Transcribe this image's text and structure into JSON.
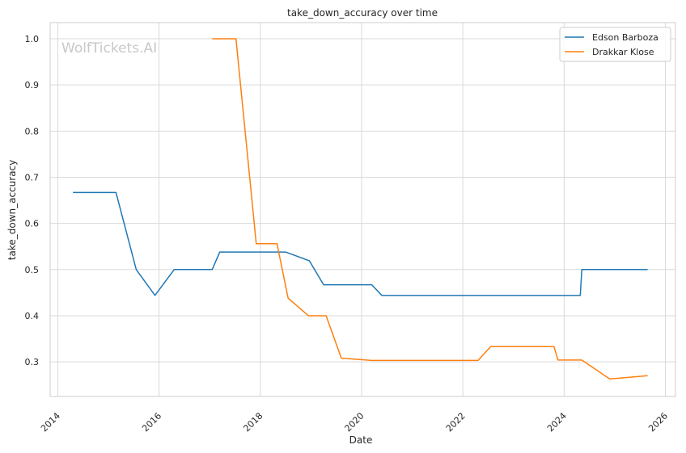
{
  "chart_data": {
    "type": "line",
    "title": "take_down_accuracy over time",
    "xlabel": "Date",
    "ylabel": "take_down_accuracy",
    "watermark": "WolfTickets.AI",
    "xlim": [
      2013.85,
      2026.2
    ],
    "ylim": [
      0.225,
      1.035
    ],
    "x_ticks": [
      2014,
      2016,
      2018,
      2020,
      2022,
      2024,
      2026
    ],
    "x_tick_labels": [
      "2014",
      "2016",
      "2018",
      "2020",
      "2022",
      "2024",
      "2026"
    ],
    "y_ticks": [
      0.3,
      0.4,
      0.5,
      0.6,
      0.7,
      0.8,
      0.9,
      1.0
    ],
    "y_tick_labels": [
      "0.3",
      "0.4",
      "0.5",
      "0.6",
      "0.7",
      "0.8",
      "0.9",
      "1.0"
    ],
    "grid": true,
    "legend_position": "top-right",
    "series": [
      {
        "name": "Edson Barboza",
        "color": "#1f77b4",
        "x": [
          2014.3,
          2015.15,
          2015.55,
          2015.92,
          2016.3,
          2017.05,
          2017.2,
          2018.5,
          2018.97,
          2019.25,
          2020.2,
          2020.4,
          2024.32,
          2024.35,
          2025.65
        ],
        "y": [
          0.667,
          0.667,
          0.5,
          0.444,
          0.5,
          0.5,
          0.538,
          0.538,
          0.519,
          0.467,
          0.467,
          0.444,
          0.444,
          0.5,
          0.5
        ]
      },
      {
        "name": "Drakkar Klose",
        "color": "#ff7f0e",
        "x": [
          2017.05,
          2017.52,
          2017.92,
          2018.33,
          2018.55,
          2018.95,
          2019.3,
          2019.6,
          2020.2,
          2022.3,
          2022.55,
          2023.8,
          2023.88,
          2024.35,
          2024.9,
          2025.65
        ],
        "y": [
          1.0,
          1.0,
          0.556,
          0.556,
          0.438,
          0.4,
          0.4,
          0.308,
          0.303,
          0.303,
          0.333,
          0.333,
          0.304,
          0.304,
          0.263,
          0.27
        ]
      }
    ]
  }
}
